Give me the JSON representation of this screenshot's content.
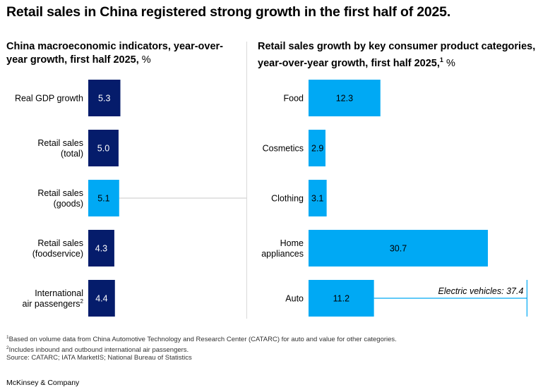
{
  "headline": "Retail sales in China registered strong growth in the first half of 2025.",
  "left_panel": {
    "title": "China macroeconomic indicators, year-over-year growth, first half 2025,",
    "unit": "%"
  },
  "right_panel": {
    "title": "Retail sales growth by key consumer product categories, year-over-year growth, first half 2025,",
    "title_sup": "1",
    "unit": "%"
  },
  "chart_data": [
    {
      "type": "bar",
      "orientation": "horizontal",
      "categories": [
        "Real GDP growth",
        "Retail sales (total)",
        "Retail sales (goods)",
        "Retail sales (foodservice)",
        "International air passengers"
      ],
      "category_lines": [
        [
          "Real GDP growth"
        ],
        [
          "Retail sales",
          "(total)"
        ],
        [
          "Retail sales",
          "(goods)"
        ],
        [
          "Retail sales",
          "(foodservice)"
        ],
        [
          "International",
          "air passengers"
        ]
      ],
      "category_sups": [
        "",
        "",
        "",
        "",
        "2"
      ],
      "values": [
        5.3,
        5.0,
        5.1,
        4.3,
        4.4
      ],
      "value_labels": [
        "5.3",
        "5.0",
        "5.1",
        "4.3",
        "4.4"
      ],
      "bar_colors": [
        "#051c6b",
        "#051c6b",
        "#00a9f4",
        "#051c6b",
        "#051c6b"
      ],
      "highlight": "Retail sales (goods)"
    },
    {
      "type": "bar",
      "orientation": "horizontal",
      "categories": [
        "Food",
        "Cosmetics",
        "Clothing",
        "Home appliances",
        "Auto"
      ],
      "category_lines": [
        [
          "Food"
        ],
        [
          "Cosmetics"
        ],
        [
          "Clothing"
        ],
        [
          "Home",
          "appliances"
        ],
        [
          "Auto"
        ]
      ],
      "category_sups": [
        "",
        "",
        "",
        "",
        ""
      ],
      "values": [
        12.3,
        2.9,
        3.1,
        30.7,
        11.2
      ],
      "value_labels": [
        "12.3",
        "2.9",
        "3.1",
        "30.7",
        "11.2"
      ],
      "bar_color": "#00a9f4",
      "annotation": {
        "category": "Auto",
        "label": "Electric vehicles:",
        "value": 37.4,
        "value_label": "37.4"
      }
    }
  ],
  "colors": {
    "dark_navy": "#051c6b",
    "cyan": "#00a9f4",
    "divider": "#d9d9d9",
    "connector": "#c8c8c8"
  },
  "footnotes": [
    {
      "sup": "1",
      "text": "Based on volume data from China Automotive Technology and Research Center (CATARC) for auto and value for other categories."
    },
    {
      "sup": "2",
      "text": "Includes inbound and outbound international air passengers."
    },
    {
      "sup": "",
      "text": "Source: CATARC; IATA MarketIS; National Bureau of Statistics"
    }
  ],
  "brand": "McKinsey & Company"
}
